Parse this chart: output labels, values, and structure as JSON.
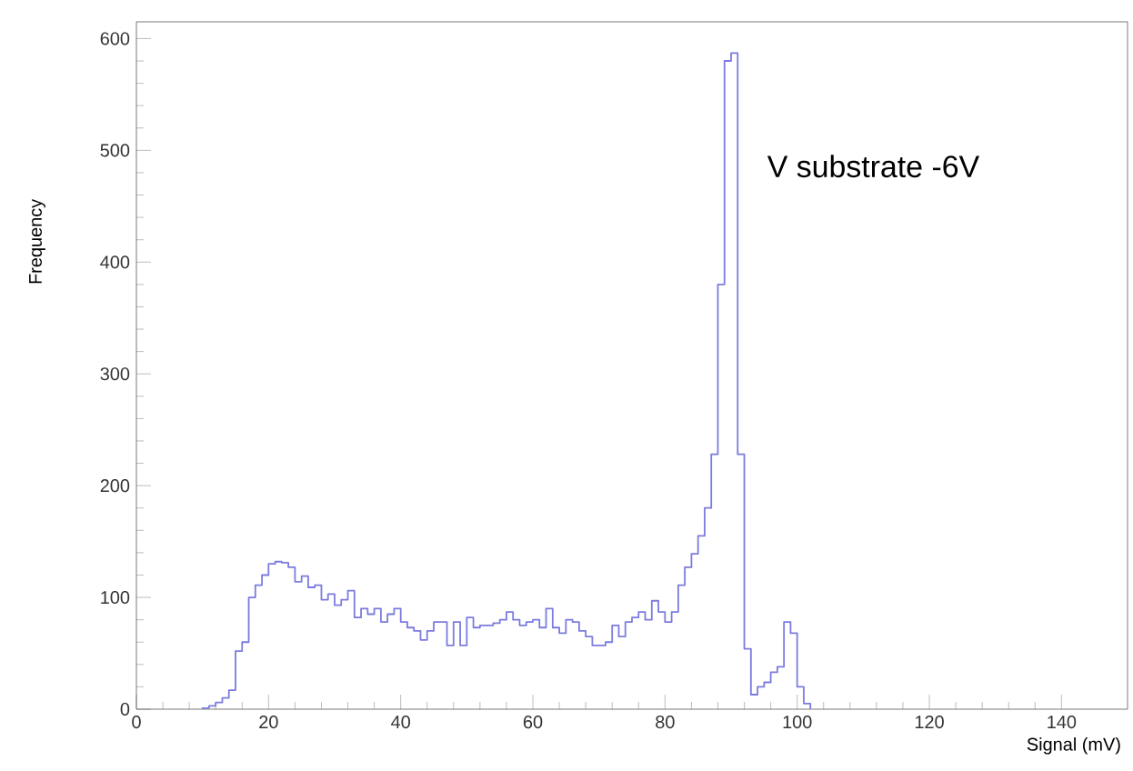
{
  "chart_data": {
    "type": "histogram",
    "xlabel": "Signal (mV)",
    "ylabel": "Frequency",
    "annotations": [
      "V substrate -6V"
    ],
    "color": "#7b7bdf",
    "bins": [
      10,
      11,
      12,
      13,
      14,
      15,
      16,
      17,
      18,
      19,
      20,
      21,
      22,
      23,
      24,
      25,
      26,
      27,
      28,
      29,
      30,
      31,
      32,
      33,
      34,
      35,
      36,
      37,
      38,
      39,
      40,
      41,
      42,
      43,
      44,
      45,
      46,
      47,
      48,
      49,
      50,
      51,
      52,
      53,
      54,
      55,
      56,
      57,
      58,
      59,
      60,
      61,
      62,
      63,
      64,
      65,
      66,
      67,
      68,
      69,
      70,
      71,
      72,
      73,
      74,
      75,
      76,
      77,
      78,
      79,
      80,
      81,
      82,
      83,
      84,
      85,
      86,
      87,
      88,
      89,
      90,
      91,
      92,
      93,
      94,
      95,
      96,
      97,
      98,
      99,
      100,
      101,
      102
    ],
    "values": [
      1,
      3,
      6,
      10,
      17,
      52,
      60,
      100,
      111,
      120,
      130,
      132,
      131,
      127,
      114,
      119,
      109,
      111,
      98,
      103,
      93,
      98,
      106,
      82,
      90,
      85,
      90,
      78,
      85,
      90,
      78,
      73,
      70,
      62,
      70,
      78,
      78,
      57,
      78,
      57,
      82,
      73,
      75,
      75,
      77,
      80,
      87,
      80,
      75,
      78,
      80,
      73,
      90,
      73,
      68,
      80,
      78,
      70,
      65,
      57,
      57,
      60,
      75,
      65,
      78,
      82,
      87,
      80,
      97,
      87,
      78,
      87,
      111,
      127,
      139,
      155,
      180,
      228,
      380,
      580,
      587,
      228,
      54,
      13,
      20,
      24,
      33,
      38,
      78,
      68,
      20,
      5
    ],
    "xlim": [
      0,
      150
    ],
    "ylim": [
      0,
      615
    ],
    "xticks": [
      0,
      20,
      40,
      60,
      80,
      100,
      120,
      140
    ],
    "yticks": [
      0,
      100,
      200,
      300,
      400,
      500,
      600
    ],
    "grid": false
  }
}
